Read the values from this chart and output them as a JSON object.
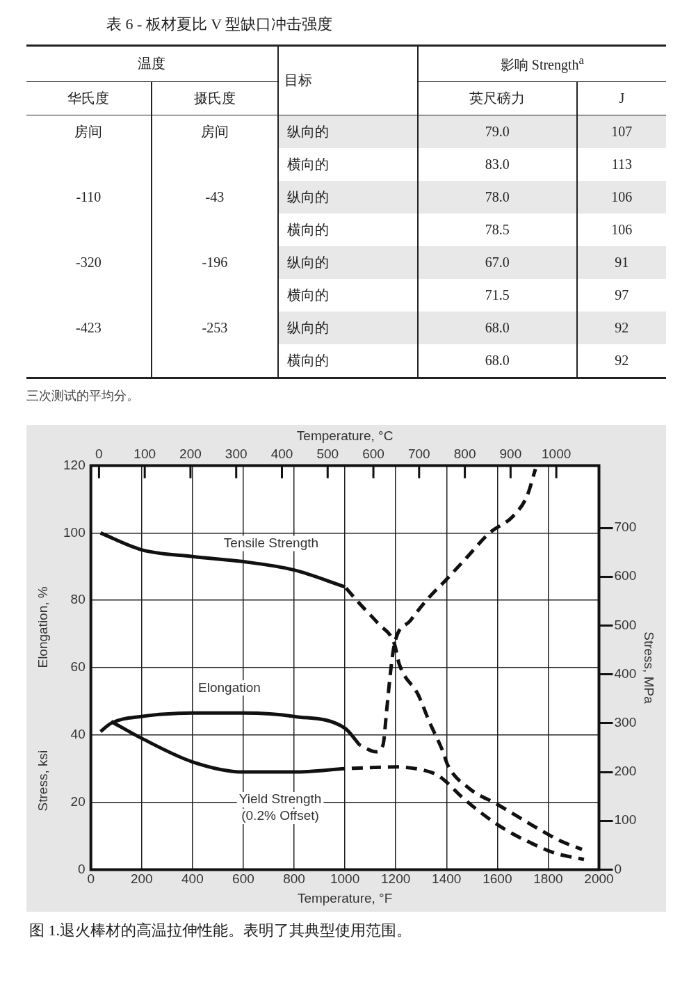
{
  "chart_data": [
    {
      "type": "other",
      "title": "表 6 - 板材夏比 V 型缺口冲击强度",
      "categories": [
        "华氏度",
        "摄氏度",
        "目标",
        "英尺磅力",
        "J"
      ],
      "annotations": [
        "温度",
        "影响 Strength$^{a}$",
        "三次测试的平均分。"
      ],
      "cell_labels": [
        [
          "房间",
          "房间",
          "纵向的",
          "79.0",
          "107"
        ],
        [
          null,
          null,
          "横向的",
          "83.0",
          "113"
        ],
        [
          "-110",
          "-43",
          "纵向的",
          "78.0",
          "106"
        ],
        [
          null,
          null,
          "横向的",
          "78.5",
          "106"
        ],
        [
          "-320",
          "-196",
          "纵向的",
          "67.0",
          "91"
        ],
        [
          null,
          null,
          "横向的",
          "71.5",
          "97"
        ],
        [
          "-423",
          "-253",
          "纵向的",
          "68.0",
          "92"
        ],
        [
          null,
          null,
          "横向的",
          "68.0",
          "92"
        ]
      ]
    },
    {
      "type": "line",
      "xlabel": "Temperature, °F",
      "x2label": "Temperature, °C",
      "ylabel": "Stress, ksi",
      "y2label": "Stress, MPa",
      "annotations": [
        "Elongation, %",
        "图 1.退火棒材的高温拉伸性能。表明了其典型使用范围。"
      ],
      "xlim": [
        0,
        2000
      ],
      "xticks": [
        0,
        200,
        400,
        600,
        800,
        1000,
        1200,
        1400,
        1600,
        1800,
        2000
      ],
      "x2lim": [
        -17.78,
        1093.3
      ],
      "x2ticks": [
        0,
        100,
        200,
        300,
        400,
        500,
        600,
        700,
        800,
        900,
        1000
      ],
      "ylim": [
        0,
        120
      ],
      "yticks": [
        0,
        20,
        40,
        60,
        80,
        100,
        120
      ],
      "y2lim": [
        0,
        827.4
      ],
      "y2ticks": [
        0,
        100,
        200,
        300,
        400,
        500,
        600,
        700
      ],
      "grid": true,
      "legend": false,
      "marker": "none",
      "series": [
        {
          "name": "Tensile Strength",
          "color": "#111111",
          "line_style": "solid",
          "x": [
            38,
            200,
            400,
            600,
            800,
            1000
          ],
          "values": [
            100,
            95,
            93,
            91.5,
            89,
            84
          ]
        },
        {
          "color": "#111111",
          "line_style": "dashed",
          "x": [
            1000,
            1058,
            1132,
            1195,
            1214,
            1288,
            1332,
            1386,
            1405,
            1491,
            1597,
            1764,
            1849,
            1933
          ],
          "values": [
            84,
            79,
            73,
            67,
            61,
            52,
            44,
            35,
            31,
            24,
            19.5,
            12,
            8.5,
            6
          ]
        },
        {
          "name": "Elongation",
          "color": "#111111",
          "line_style": "solid",
          "x": [
            38,
            80,
            200,
            400,
            600,
            800,
            1000,
            1058
          ],
          "values": [
            41,
            43.5,
            45.5,
            46.5,
            46.5,
            45.5,
            42,
            37
          ]
        },
        {
          "color": "#111111",
          "line_style": "dashed",
          "x": [
            1058,
            1123,
            1150,
            1164,
            1180,
            1195,
            1258,
            1321,
            1397,
            1471,
            1569,
            1662,
            1717,
            1750
          ],
          "values": [
            37,
            35,
            37,
            47,
            59,
            67,
            74,
            80,
            86,
            92,
            100,
            105,
            111,
            119
          ]
        },
        {
          "name": "Yield Strength (0.2% Offset)",
          "color": "#111111",
          "line_style": "solid",
          "x": [
            80,
            200,
            400,
            600,
            800,
            1000
          ],
          "values": [
            44,
            39,
            32,
            29,
            29,
            30
          ]
        },
        {
          "color": "#111111",
          "line_style": "dashed",
          "x": [
            1000,
            1200,
            1311,
            1366,
            1400,
            1454,
            1569,
            1640,
            1758,
            1822,
            1941
          ],
          "values": [
            30,
            30.5,
            29.5,
            28,
            26,
            22,
            15,
            11.5,
            7,
            5,
            3
          ]
        }
      ]
    }
  ]
}
